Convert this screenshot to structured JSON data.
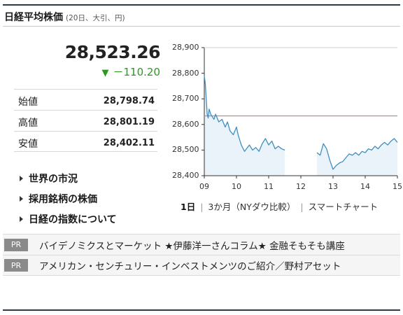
{
  "header": {
    "title": "日経平均株価",
    "subtitle": "(20日、大引、円)"
  },
  "quote": {
    "price": "28,523.26",
    "change_icon": "down-triangle",
    "change": "－110.20",
    "change_color": "#2a9a1e"
  },
  "stats": [
    {
      "label": "始値",
      "value": "28,798.74"
    },
    {
      "label": "高値",
      "value": "28,801.19"
    },
    {
      "label": "安値",
      "value": "28,402.11"
    }
  ],
  "links": [
    {
      "label": "世界の市況"
    },
    {
      "label": "採用銘柄の株価"
    },
    {
      "label": "日経の指数について"
    }
  ],
  "chart_data": {
    "type": "line",
    "y_ticks": [
      "28,900",
      "28,800",
      "28,700",
      "28,600",
      "28,500",
      "28,400"
    ],
    "x_ticks": [
      "09",
      "10",
      "11",
      "12",
      "13",
      "14",
      "15"
    ],
    "ylim": [
      28400,
      28900
    ],
    "xlim": [
      9,
      15
    ],
    "reference_line": 28633.46,
    "reference_color": "#e0707a",
    "line_color": "#3f8fc0",
    "grid": false,
    "series": [
      {
        "values": [
          [
            9.0,
            28790
          ],
          [
            9.03,
            28760
          ],
          [
            9.06,
            28700
          ],
          [
            9.09,
            28640
          ],
          [
            9.12,
            28625
          ],
          [
            9.15,
            28660
          ],
          [
            9.2,
            28640
          ],
          [
            9.25,
            28630
          ],
          [
            9.3,
            28620
          ],
          [
            9.35,
            28640
          ],
          [
            9.45,
            28610
          ],
          [
            9.55,
            28620
          ],
          [
            9.65,
            28590
          ],
          [
            9.72,
            28610
          ],
          [
            9.8,
            28575
          ],
          [
            9.9,
            28560
          ],
          [
            10.0,
            28590
          ],
          [
            10.05,
            28560
          ],
          [
            10.15,
            28520
          ],
          [
            10.25,
            28495
          ],
          [
            10.4,
            28520
          ],
          [
            10.5,
            28500
          ],
          [
            10.6,
            28510
          ],
          [
            10.7,
            28495
          ],
          [
            10.8,
            28525
          ],
          [
            10.9,
            28545
          ],
          [
            11.0,
            28520
          ],
          [
            11.1,
            28535
          ],
          [
            11.2,
            28505
          ],
          [
            11.3,
            28515
          ],
          [
            11.4,
            28505
          ],
          [
            11.5,
            28500
          ]
        ]
      },
      {
        "values": [
          [
            12.5,
            28490
          ],
          [
            12.6,
            28480
          ],
          [
            12.7,
            28525
          ],
          [
            12.8,
            28505
          ],
          [
            12.9,
            28460
          ],
          [
            13.0,
            28425
          ],
          [
            13.1,
            28440
          ],
          [
            13.2,
            28450
          ],
          [
            13.3,
            28455
          ],
          [
            13.4,
            28470
          ],
          [
            13.5,
            28485
          ],
          [
            13.6,
            28480
          ],
          [
            13.7,
            28490
          ],
          [
            13.8,
            28480
          ],
          [
            13.9,
            28495
          ],
          [
            14.0,
            28490
          ],
          [
            14.1,
            28505
          ],
          [
            14.2,
            28500
          ],
          [
            14.3,
            28515
          ],
          [
            14.4,
            28505
          ],
          [
            14.5,
            28520
          ],
          [
            14.6,
            28530
          ],
          [
            14.7,
            28520
          ],
          [
            14.8,
            28535
          ],
          [
            14.9,
            28545
          ],
          [
            15.0,
            28530
          ]
        ]
      }
    ]
  },
  "chart_tabs": [
    {
      "label": "1日",
      "active": true
    },
    {
      "label": "3か月（NYダウ比較）",
      "active": false
    },
    {
      "label": "スマートチャート",
      "active": false
    }
  ],
  "ads": [
    {
      "badge": "PR",
      "text": "バイデノミクスとマーケット ★伊藤洋一さんコラム★ 金融そもそも講座"
    },
    {
      "badge": "PR",
      "text": "アメリカン・センチュリー・インベストメンツのご紹介／野村アセット"
    }
  ]
}
